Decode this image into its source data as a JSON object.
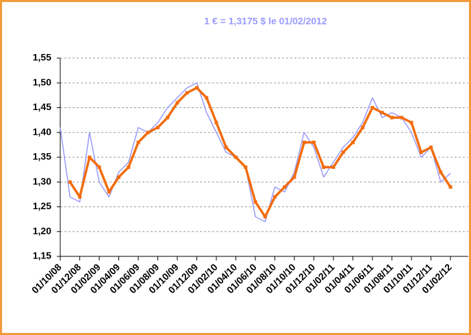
{
  "chart_data": {
    "type": "line",
    "title": "1 € = 1,3175  $ le 01/02/2012",
    "categories": [
      "01/10/08",
      null,
      "01/12/08",
      null,
      "01/02/09",
      null,
      "01/04/09",
      null,
      "01/06/09",
      null,
      "01/08/09",
      null,
      "01/10/09",
      null,
      "01/12/09",
      null,
      "01/02/10",
      null,
      "01/04/10",
      null,
      "01/06/10",
      null,
      "01/08/10",
      null,
      "01/10/10",
      null,
      "01/12/10",
      null,
      "01/02/11",
      null,
      "01/04/11",
      null,
      "01/06/11",
      null,
      "01/08/11",
      null,
      "01/10/11",
      null,
      "01/12/11",
      null,
      "01/02/12"
    ],
    "series": [
      {
        "color": "#9999ff",
        "values": [
          1.41,
          1.27,
          1.26,
          1.4,
          1.3,
          1.27,
          1.32,
          1.34,
          1.41,
          1.4,
          1.42,
          1.45,
          1.47,
          1.49,
          1.5,
          1.44,
          1.4,
          1.36,
          1.35,
          1.33,
          1.23,
          1.22,
          1.29,
          1.28,
          1.32,
          1.4,
          1.37,
          1.31,
          1.34,
          1.37,
          1.39,
          1.42,
          1.47,
          1.43,
          1.44,
          1.43,
          1.4,
          1.35,
          1.37,
          1.3,
          1.3175
        ]
      },
      {
        "color": "#f26c0d",
        "values": [
          null,
          1.3,
          1.27,
          1.35,
          1.33,
          1.28,
          1.31,
          1.33,
          1.38,
          1.4,
          1.41,
          1.43,
          1.46,
          1.48,
          1.49,
          1.47,
          1.42,
          1.37,
          1.35,
          1.33,
          1.26,
          1.23,
          1.27,
          1.29,
          1.31,
          1.38,
          1.38,
          1.33,
          1.33,
          1.36,
          1.38,
          1.41,
          1.45,
          1.44,
          1.43,
          1.43,
          1.42,
          1.36,
          1.37,
          1.32,
          1.29
        ]
      }
    ],
    "ylim": [
      1.15,
      1.55
    ],
    "yticks": [
      {
        "value": 1.15,
        "label": "1,15"
      },
      {
        "value": 1.2,
        "label": "1,20"
      },
      {
        "value": 1.25,
        "label": "1,25"
      },
      {
        "value": 1.3,
        "label": "1,30"
      },
      {
        "value": 1.35,
        "label": "1,35"
      },
      {
        "value": 1.4,
        "label": "1,40"
      },
      {
        "value": 1.45,
        "label": "1,45"
      },
      {
        "value": 1.5,
        "label": "1,50"
      },
      {
        "value": 1.55,
        "label": "1,55"
      }
    ],
    "grid": true
  }
}
